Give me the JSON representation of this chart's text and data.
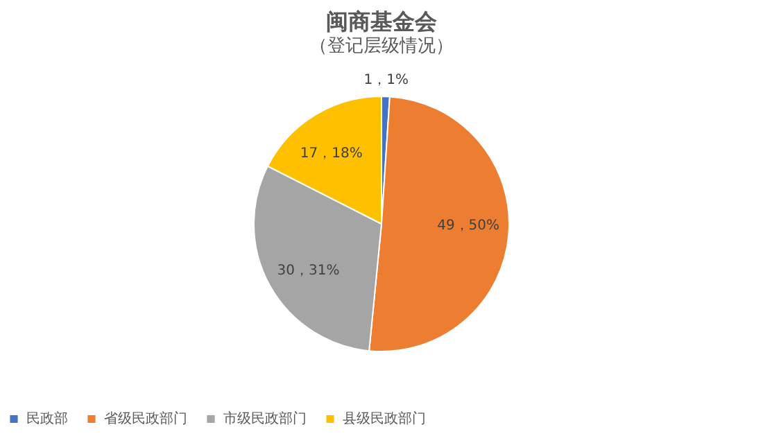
{
  "chart_data": {
    "type": "pie",
    "title": "闽商基金会",
    "subtitle": "（登记层级情况）",
    "categories": [
      "民政部",
      "省级民政部门",
      "市级民政部门",
      "县级民政部门"
    ],
    "values": [
      1,
      49,
      30,
      17
    ],
    "colors": [
      "#4472c4",
      "#ed7d31",
      "#a5a5a5",
      "#ffc000"
    ],
    "value_labels": [
      "1，1%",
      "49，50%",
      "30，31%",
      "17，18%"
    ],
    "legend": "bottom"
  }
}
